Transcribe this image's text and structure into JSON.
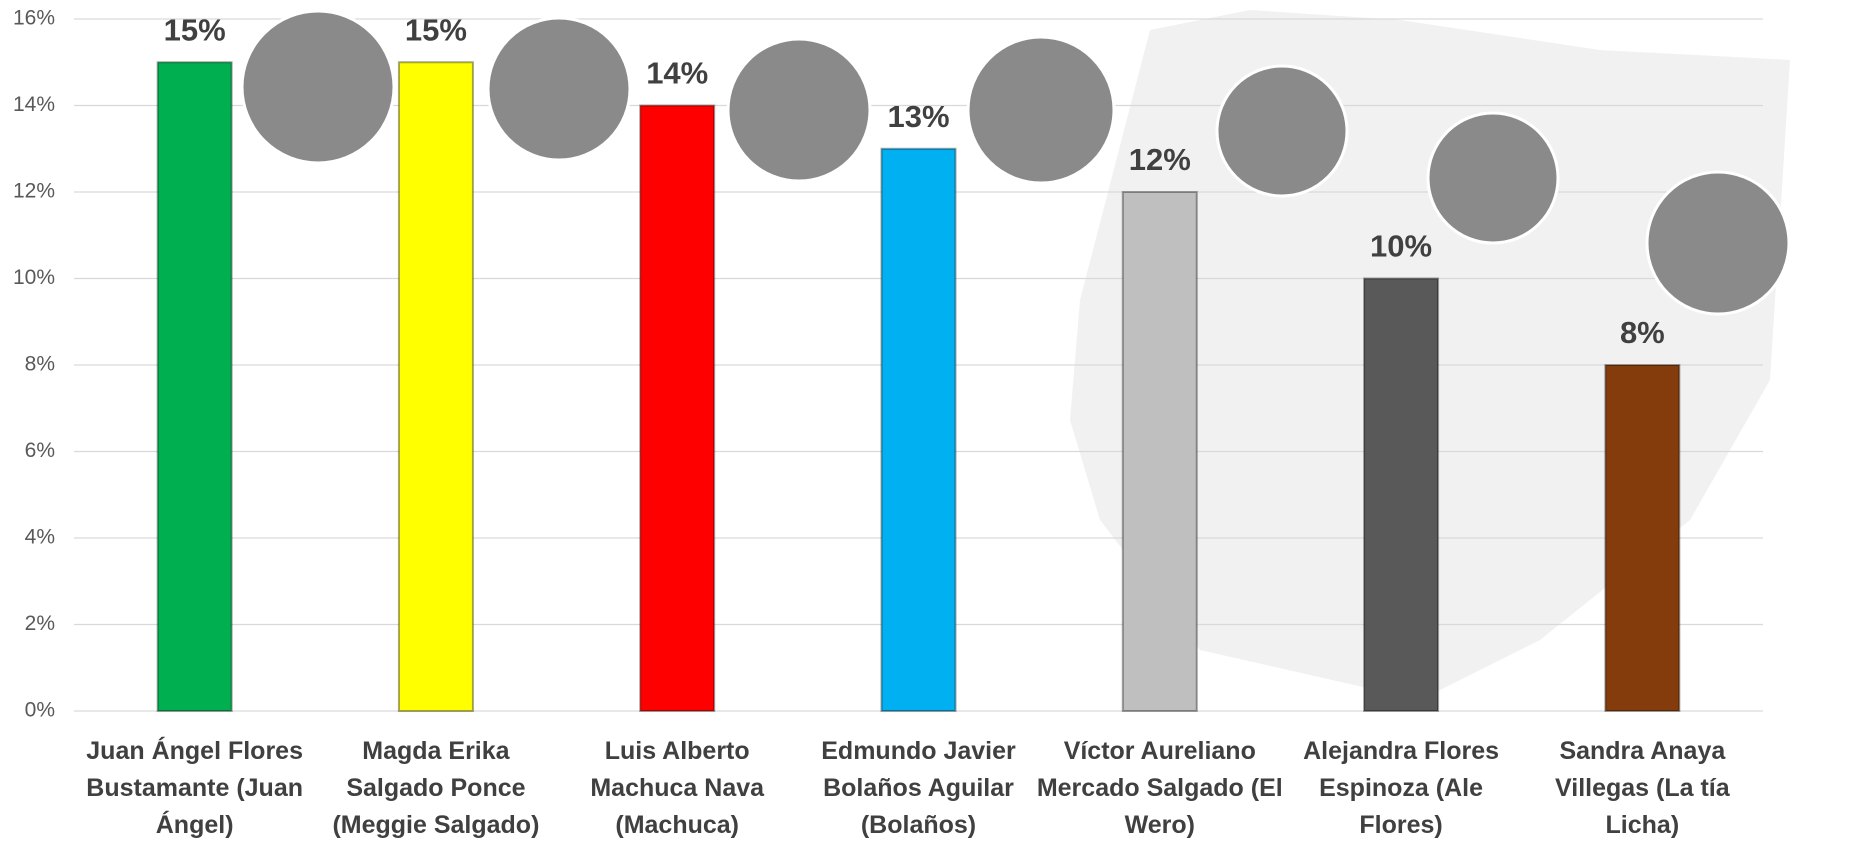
{
  "chart_data": {
    "type": "bar",
    "categories": [
      "Juan Ángel Flores Bustamante (Juan Ángel)",
      "Magda Erika Salgado Ponce (Meggie Salgado)",
      "Luis Alberto Machuca Nava (Machuca)",
      "Edmundo Javier Bolaños Aguilar (Bolaños)",
      "Víctor Aureliano Mercado Salgado (El Wero)",
      "Alejandra Flores Espinoza (Ale Flores)",
      "Sandra Anaya Villegas (La tía Licha)"
    ],
    "values": [
      15,
      15,
      14,
      13,
      12,
      10,
      8
    ],
    "value_labels": [
      "15%",
      "15%",
      "14%",
      "13%",
      "12%",
      "10%",
      "8%"
    ],
    "colors": [
      "#00b050",
      "#ffff00",
      "#ff0000",
      "#00b0f0",
      "#bfbfbf",
      "#595959",
      "#843c0c"
    ],
    "ylim": [
      0,
      16
    ],
    "yticks": [
      {
        "value": 0,
        "label": "0%"
      },
      {
        "value": 2,
        "label": "2%"
      },
      {
        "value": 4,
        "label": "4%"
      },
      {
        "value": 6,
        "label": "6%"
      },
      {
        "value": 8,
        "label": "8%"
      },
      {
        "value": 10,
        "label": "10%"
      },
      {
        "value": 12,
        "label": "12%"
      },
      {
        "value": 14,
        "label": "14%"
      },
      {
        "value": 16,
        "label": "16%"
      }
    ],
    "grid": true
  }
}
